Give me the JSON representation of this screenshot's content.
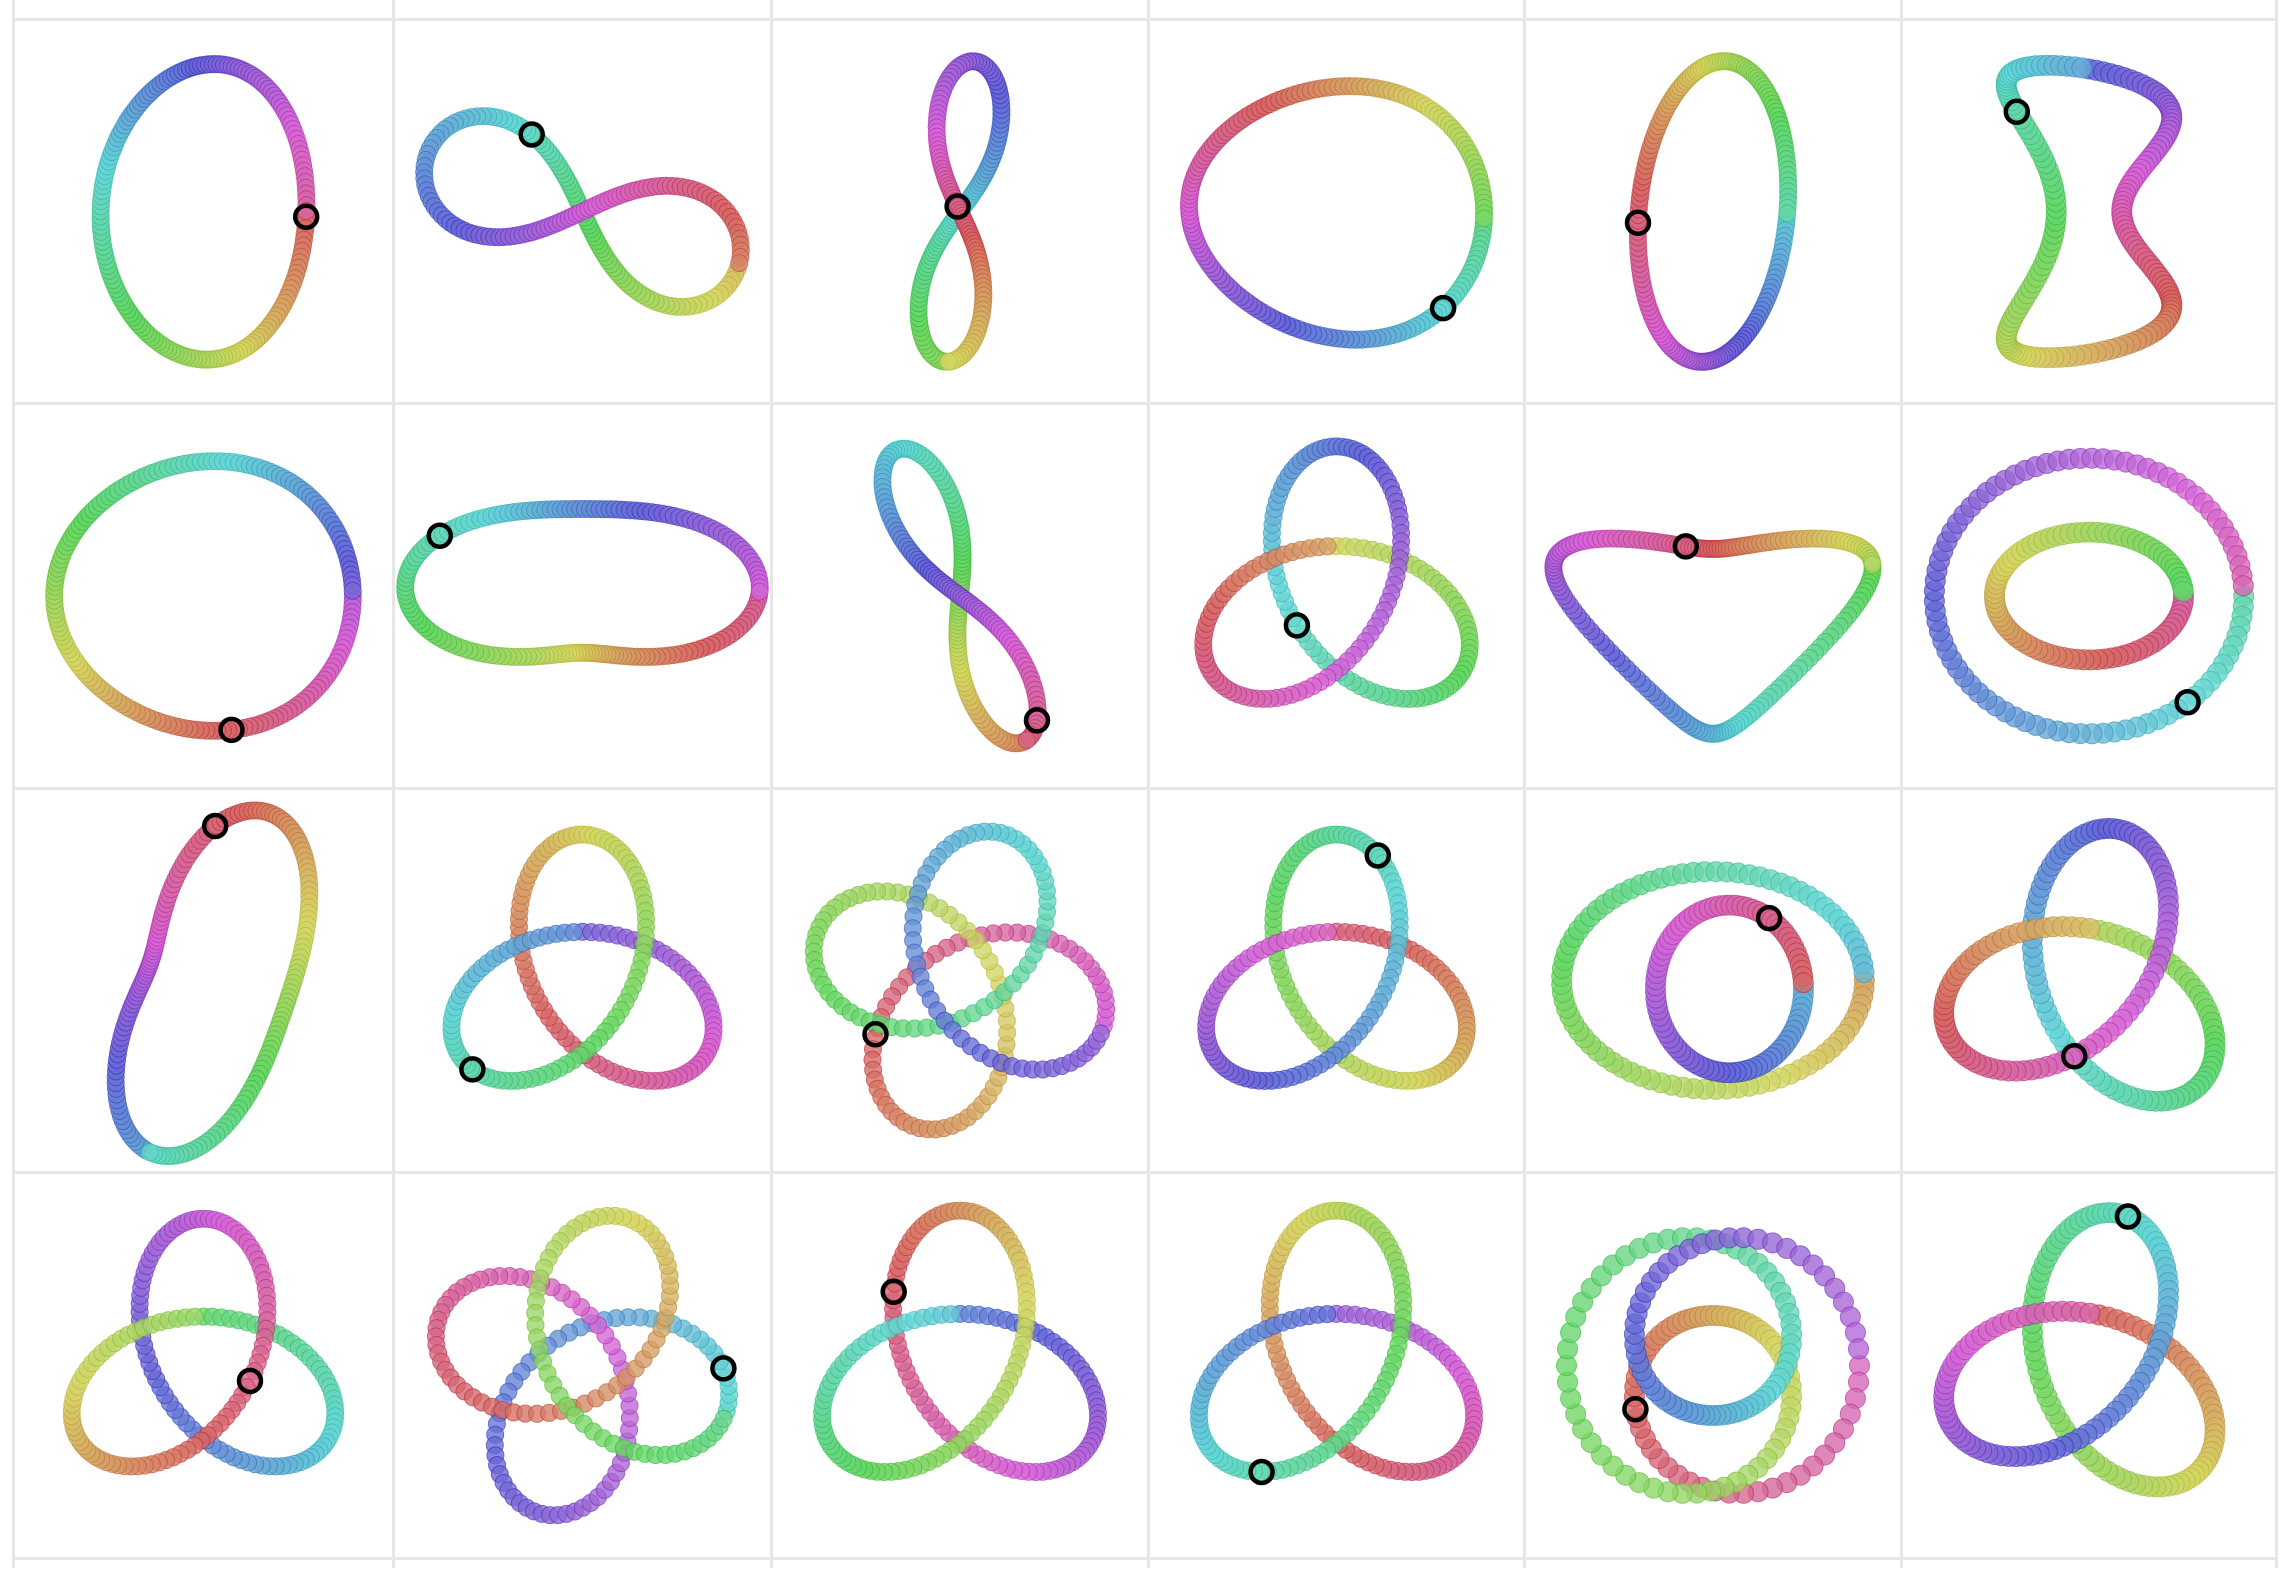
{
  "gallery": {
    "rows": 4,
    "columns": 6,
    "items": [
      {
        "shape": "unknot-oval",
        "has_marker": true
      },
      {
        "shape": "figure-eight-open",
        "has_marker": true
      },
      {
        "shape": "figure-eight-vertical",
        "has_marker": true
      },
      {
        "shape": "unknot-ellipse",
        "has_marker": true
      },
      {
        "shape": "unknot-rounded-rect",
        "has_marker": true
      },
      {
        "shape": "tangled-loop",
        "has_marker": true
      },
      {
        "shape": "unknot-circle",
        "has_marker": true
      },
      {
        "shape": "kidney-loop",
        "has_marker": true
      },
      {
        "shape": "figure-eight-tilted",
        "has_marker": true
      },
      {
        "shape": "trefoil-open",
        "has_marker": true
      },
      {
        "shape": "heart-loop",
        "has_marker": true
      },
      {
        "shape": "nested-loops",
        "has_marker": true
      },
      {
        "shape": "bean-loop",
        "has_marker": true
      },
      {
        "shape": "trefoil-gapped",
        "has_marker": true
      },
      {
        "shape": "four-lobe-knot",
        "has_marker": true
      },
      {
        "shape": "trefoil-gapped",
        "has_marker": true
      },
      {
        "shape": "double-oval-knot",
        "has_marker": true
      },
      {
        "shape": "trefoil-thick",
        "has_marker": true
      },
      {
        "shape": "trefoil-gapped",
        "has_marker": true
      },
      {
        "shape": "four-lobe-knot",
        "has_marker": true
      },
      {
        "shape": "trefoil-large",
        "has_marker": true
      },
      {
        "shape": "trefoil-large",
        "has_marker": true
      },
      {
        "shape": "figure-eight-knot",
        "has_marker": true
      },
      {
        "shape": "trefoil-thick",
        "has_marker": true
      }
    ]
  },
  "colors": {
    "background": "#ffffff",
    "grid_line": "#e6e6e6",
    "marker": "#000000",
    "palette": "hue-gradient"
  }
}
